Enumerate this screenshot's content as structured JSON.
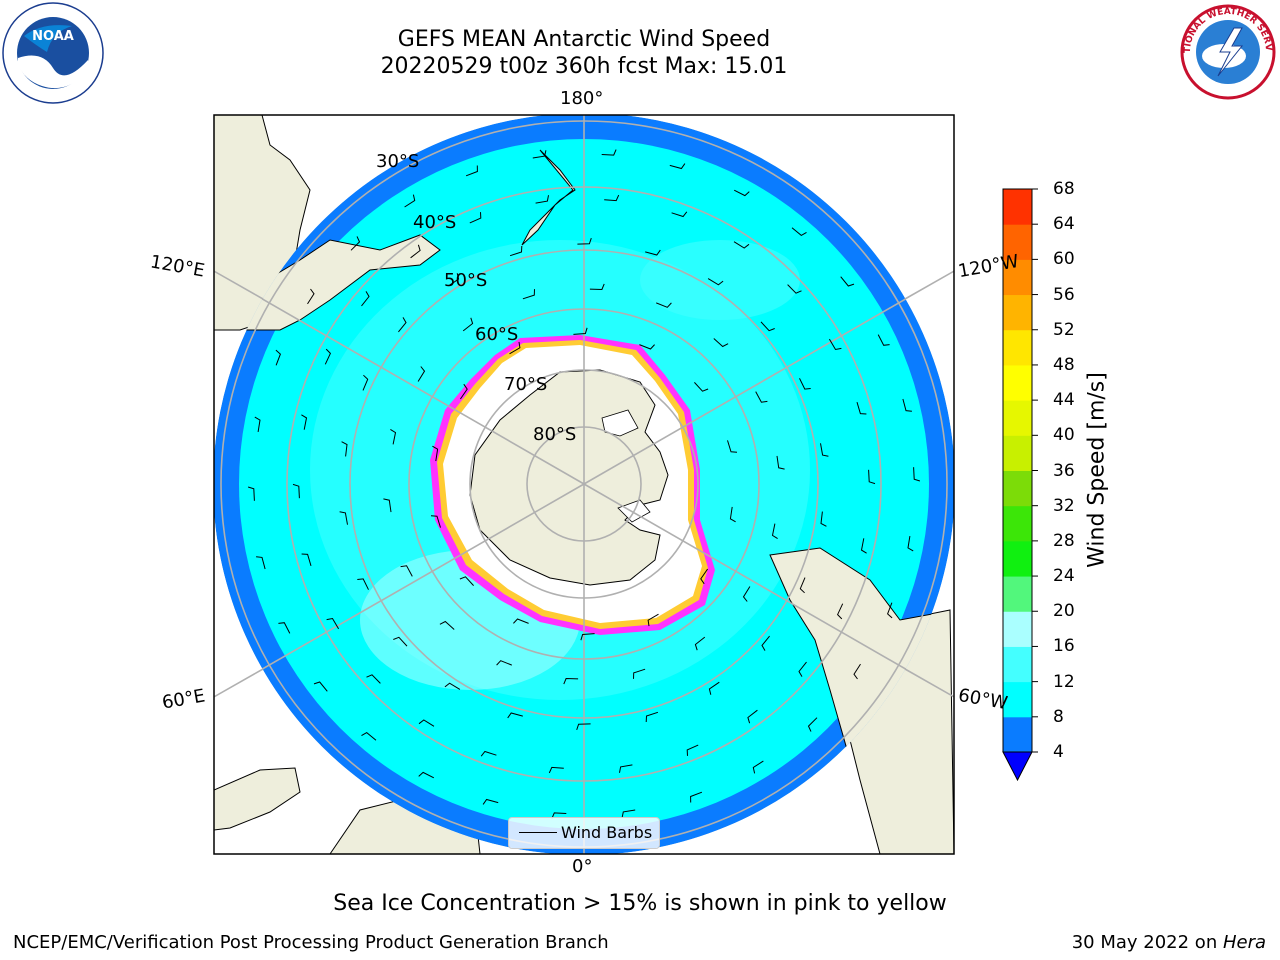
{
  "header": {
    "title_line1": "GEFS MEAN Antarctic Wind Speed",
    "title_line2": "20220529 t00z 360h fcst   Max: 15.01"
  },
  "logos": {
    "left": {
      "icon": "noaa-logo",
      "text": "NOAA"
    },
    "right": {
      "icon": "nws-logo",
      "text": "NATIONAL WEATHER SERVICE"
    }
  },
  "map": {
    "projection": "south-polar-stereographic",
    "longitude_labels": {
      "top": "180°",
      "bottom": "0°",
      "upper_left": "120°E",
      "upper_right": "120°W",
      "lower_left": "60°E",
      "lower_right": "60°W"
    },
    "latitude_labels": [
      "30°S",
      "40°S",
      "50°S",
      "60°S",
      "70°S",
      "80°S"
    ],
    "legend_label": "Wind Barbs"
  },
  "colorbar": {
    "label": "Wind Speed [m/s]",
    "ticks": [
      "4",
      "8",
      "12",
      "16",
      "20",
      "24",
      "28",
      "32",
      "36",
      "40",
      "44",
      "48",
      "52",
      "56",
      "60",
      "64",
      "68"
    ],
    "colors": [
      "#0a7cff",
      "#00ffff",
      "#44ffff",
      "#aaffff",
      "#52f77c",
      "#10f010",
      "#3ce608",
      "#7cdc08",
      "#c8f000",
      "#e6f700",
      "#ffff00",
      "#ffe600",
      "#ffb400",
      "#ff8c00",
      "#ff6400",
      "#ff3200",
      "#ff0000"
    ],
    "extend_below_color": "#0000ff"
  },
  "note": "Sea Ice Concentration > 15% is shown in pink to yellow",
  "footer": {
    "left": "NCEP/EMC/Verification Post Processing Product Generation Branch",
    "right_date": "30 May 2022 on ",
    "right_machine": "Hera"
  }
}
